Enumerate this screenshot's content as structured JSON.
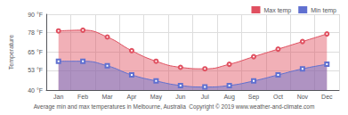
{
  "chart_data": {
    "type": "line",
    "title": "Average min and max temperatures in Melbourne, Australia  Copyright © 2019 www.weather-and-climate.com",
    "ylabel": "Temperature",
    "categories": [
      "Jan",
      "Feb",
      "Mar",
      "Apr",
      "May",
      "Jun",
      "Jul",
      "Aug",
      "Sep",
      "Oct",
      "Nov",
      "Dec"
    ],
    "series": [
      {
        "name": "Max temp",
        "color": "#e05060",
        "marker": "circle",
        "values": [
          79,
          79.5,
          75,
          66,
          59,
          55,
          54,
          57,
          62,
          67,
          72,
          77
        ]
      },
      {
        "name": "Min temp",
        "color": "#6070d0",
        "marker": "square",
        "values": [
          59,
          59,
          56,
          50,
          46,
          43,
          42,
          43,
          46,
          50,
          54,
          57
        ]
      }
    ],
    "ylim": [
      40,
      90
    ],
    "yticks": [
      {
        "value": 40,
        "label": "40 °F"
      },
      {
        "value": 53,
        "label": "53 °F"
      },
      {
        "value": 65,
        "label": "65 °F"
      },
      {
        "value": 78,
        "label": "78 °F"
      },
      {
        "value": 90,
        "label": "90 °F"
      }
    ],
    "grid": true,
    "legend": "upper right"
  }
}
